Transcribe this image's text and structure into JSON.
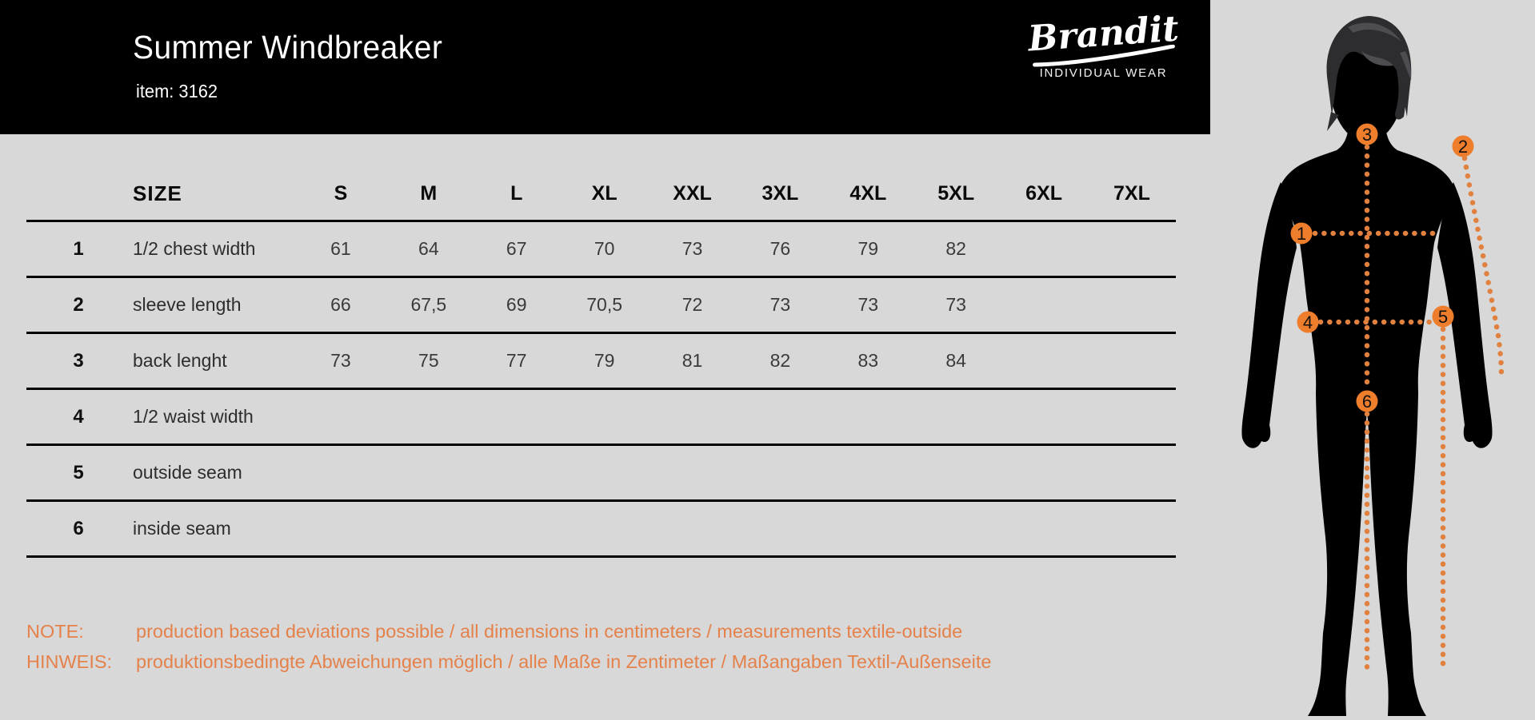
{
  "header": {
    "title": "Summer Windbreaker",
    "item_label": "item: 3162",
    "brand": {
      "name": "Brandit",
      "tagline": "INDIVIDUAL WEAR"
    }
  },
  "table": {
    "size_label": "SIZE",
    "columns": [
      "S",
      "M",
      "L",
      "XL",
      "XXL",
      "3XL",
      "4XL",
      "5XL",
      "6XL",
      "7XL"
    ],
    "rows": [
      {
        "num": "1",
        "label": "1/2 chest width",
        "values": [
          "61",
          "64",
          "67",
          "70",
          "73",
          "76",
          "79",
          "82",
          "",
          ""
        ]
      },
      {
        "num": "2",
        "label": "sleeve length",
        "values": [
          "66",
          "67,5",
          "69",
          "70,5",
          "72",
          "73",
          "73",
          "73",
          "",
          ""
        ]
      },
      {
        "num": "3",
        "label": "back lenght",
        "values": [
          "73",
          "75",
          "77",
          "79",
          "81",
          "82",
          "83",
          "84",
          "",
          ""
        ]
      },
      {
        "num": "4",
        "label": "1/2 waist width",
        "values": [
          "",
          "",
          "",
          "",
          "",
          "",
          "",
          "",
          "",
          ""
        ]
      },
      {
        "num": "5",
        "label": "outside seam",
        "values": [
          "",
          "",
          "",
          "",
          "",
          "",
          "",
          "",
          "",
          ""
        ]
      },
      {
        "num": "6",
        "label": "inside seam",
        "values": [
          "",
          "",
          "",
          "",
          "",
          "",
          "",
          "",
          "",
          ""
        ]
      }
    ]
  },
  "notes": [
    {
      "label": "NOTE:",
      "text": "production based deviations possible / all dimensions in centimeters / measurements textile-outside"
    },
    {
      "label": "HINWEIS:",
      "text": "produktionsbedingte Abweichungen möglich / alle Maße in Zentimeter / Maßangaben Textil-Außenseite"
    }
  ],
  "figure": {
    "markers": [
      "1",
      "2",
      "3",
      "4",
      "5",
      "6"
    ]
  },
  "colors": {
    "background": "#d8d8d8",
    "header_bg": "#000000",
    "marker_orange": "#ee7d2c",
    "dotted_line_orange": "#e08140",
    "note_orange": "#e5814a"
  }
}
